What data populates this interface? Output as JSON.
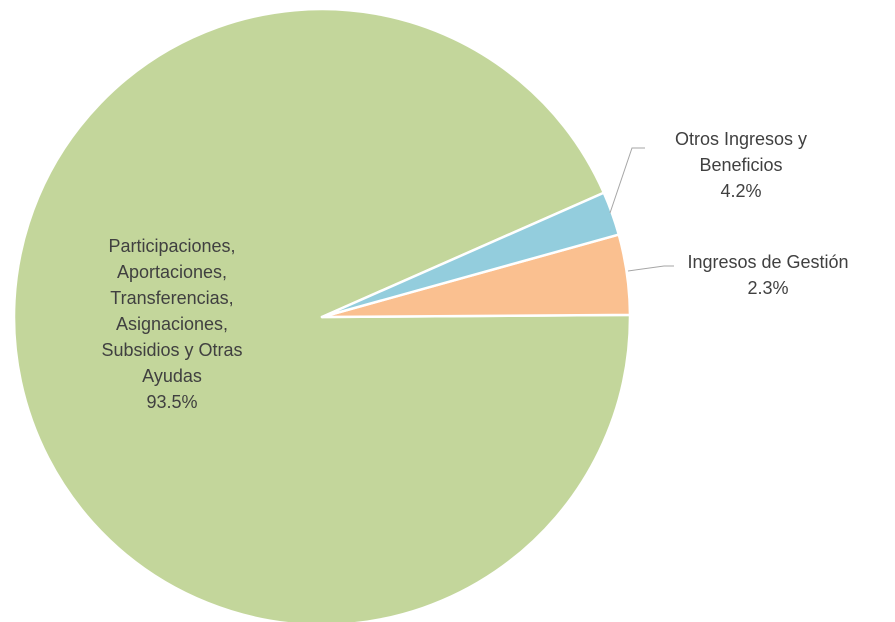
{
  "chart_data": {
    "type": "pie",
    "title": "",
    "slices": [
      {
        "name": "Participaciones, Aportaciones, Transferencias, Asignaciones, Subsidios y Otras Ayudas",
        "value": 93.5,
        "value_label": "93.5%",
        "label_lines": [
          "Participaciones,",
          "Aportaciones,",
          "Transferencias,",
          "Asignaciones,",
          "Subsidios y Otras",
          "Ayudas"
        ],
        "color": "#c3d69b"
      },
      {
        "name": "Otros Ingresos y Beneficios",
        "value": 4.2,
        "value_label": "4.2%",
        "label_lines": [
          "Otros Ingresos y",
          "Beneficios"
        ],
        "color": "#fac090"
      },
      {
        "name": "Ingresos de Gestión",
        "value": 2.3,
        "value_label": "2.3%",
        "label_lines": [
          "Ingresos de Gestión"
        ],
        "color": "#93cddd"
      }
    ],
    "legend": "none",
    "label_style": "category name and percentage"
  }
}
